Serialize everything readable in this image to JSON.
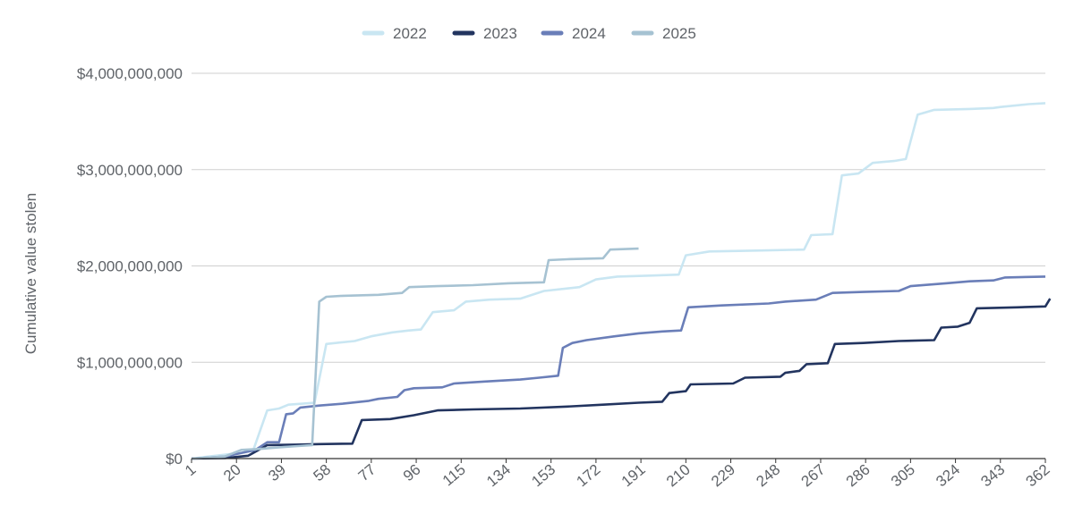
{
  "chart_data": {
    "type": "line",
    "title": "",
    "xlabel": "",
    "ylabel": "Cumulative value stolen",
    "x_ticks": [
      1,
      20,
      39,
      58,
      77,
      96,
      115,
      134,
      153,
      172,
      191,
      210,
      229,
      248,
      267,
      286,
      305,
      324,
      343,
      362
    ],
    "xlim": [
      1,
      362
    ],
    "ylim": [
      0,
      4000000000
    ],
    "y_ticks": [
      {
        "value": 0,
        "label": "$0"
      },
      {
        "value": 1000000000,
        "label": "$1,000,000,000"
      },
      {
        "value": 2000000000,
        "label": "$2,000,000,000"
      },
      {
        "value": 3000000000,
        "label": "$3,000,000,000"
      },
      {
        "value": 4000000000,
        "label": "$4,000,000,000"
      }
    ],
    "grid": true,
    "legend_position": "top",
    "series": [
      {
        "name": "2022",
        "color": "#c9e6f2",
        "points": [
          [
            1,
            0
          ],
          [
            8,
            20000000
          ],
          [
            15,
            40000000
          ],
          [
            22,
            60000000
          ],
          [
            27,
            80000000
          ],
          [
            33,
            500000000
          ],
          [
            38,
            520000000
          ],
          [
            42,
            560000000
          ],
          [
            48,
            570000000
          ],
          [
            53,
            580000000
          ],
          [
            58,
            1190000000
          ],
          [
            70,
            1220000000
          ],
          [
            77,
            1270000000
          ],
          [
            86,
            1310000000
          ],
          [
            93,
            1330000000
          ],
          [
            98,
            1340000000
          ],
          [
            103,
            1520000000
          ],
          [
            112,
            1540000000
          ],
          [
            117,
            1630000000
          ],
          [
            127,
            1650000000
          ],
          [
            140,
            1660000000
          ],
          [
            150,
            1740000000
          ],
          [
            165,
            1780000000
          ],
          [
            172,
            1860000000
          ],
          [
            181,
            1890000000
          ],
          [
            195,
            1900000000
          ],
          [
            207,
            1910000000
          ],
          [
            210,
            2110000000
          ],
          [
            220,
            2150000000
          ],
          [
            240,
            2160000000
          ],
          [
            260,
            2170000000
          ],
          [
            263,
            2320000000
          ],
          [
            272,
            2330000000
          ],
          [
            276,
            2940000000
          ],
          [
            283,
            2960000000
          ],
          [
            289,
            3070000000
          ],
          [
            298,
            3090000000
          ],
          [
            303,
            3110000000
          ],
          [
            308,
            3570000000
          ],
          [
            315,
            3620000000
          ],
          [
            330,
            3630000000
          ],
          [
            340,
            3640000000
          ],
          [
            343,
            3650000000
          ],
          [
            355,
            3680000000
          ],
          [
            362,
            3690000000
          ]
        ]
      },
      {
        "name": "2023",
        "color": "#22345f",
        "points": [
          [
            1,
            0
          ],
          [
            15,
            5000000
          ],
          [
            25,
            30000000
          ],
          [
            33,
            140000000
          ],
          [
            45,
            145000000
          ],
          [
            55,
            150000000
          ],
          [
            69,
            155000000
          ],
          [
            73,
            400000000
          ],
          [
            85,
            410000000
          ],
          [
            95,
            450000000
          ],
          [
            105,
            500000000
          ],
          [
            120,
            510000000
          ],
          [
            140,
            520000000
          ],
          [
            160,
            540000000
          ],
          [
            175,
            560000000
          ],
          [
            190,
            580000000
          ],
          [
            200,
            590000000
          ],
          [
            203,
            680000000
          ],
          [
            210,
            700000000
          ],
          [
            212,
            770000000
          ],
          [
            230,
            780000000
          ],
          [
            235,
            840000000
          ],
          [
            250,
            850000000
          ],
          [
            252,
            890000000
          ],
          [
            258,
            910000000
          ],
          [
            261,
            980000000
          ],
          [
            270,
            990000000
          ],
          [
            273,
            1190000000
          ],
          [
            285,
            1200000000
          ],
          [
            300,
            1220000000
          ],
          [
            315,
            1230000000
          ],
          [
            318,
            1360000000
          ],
          [
            325,
            1370000000
          ],
          [
            330,
            1410000000
          ],
          [
            333,
            1560000000
          ],
          [
            350,
            1570000000
          ],
          [
            362,
            1580000000
          ],
          [
            364,
            1660000000
          ]
        ]
      },
      {
        "name": "2024",
        "color": "#6a7eb8",
        "points": [
          [
            1,
            0
          ],
          [
            15,
            20000000
          ],
          [
            28,
            90000000
          ],
          [
            33,
            170000000
          ],
          [
            38,
            170000000
          ],
          [
            41,
            460000000
          ],
          [
            44,
            470000000
          ],
          [
            47,
            530000000
          ],
          [
            55,
            550000000
          ],
          [
            65,
            570000000
          ],
          [
            76,
            600000000
          ],
          [
            80,
            620000000
          ],
          [
            88,
            640000000
          ],
          [
            91,
            710000000
          ],
          [
            95,
            730000000
          ],
          [
            107,
            740000000
          ],
          [
            112,
            780000000
          ],
          [
            125,
            800000000
          ],
          [
            140,
            820000000
          ],
          [
            148,
            840000000
          ],
          [
            156,
            860000000
          ],
          [
            158,
            1150000000
          ],
          [
            162,
            1200000000
          ],
          [
            168,
            1230000000
          ],
          [
            180,
            1270000000
          ],
          [
            190,
            1300000000
          ],
          [
            200,
            1320000000
          ],
          [
            208,
            1330000000
          ],
          [
            211,
            1570000000
          ],
          [
            225,
            1590000000
          ],
          [
            245,
            1610000000
          ],
          [
            252,
            1630000000
          ],
          [
            265,
            1650000000
          ],
          [
            272,
            1720000000
          ],
          [
            285,
            1730000000
          ],
          [
            300,
            1740000000
          ],
          [
            305,
            1790000000
          ],
          [
            320,
            1820000000
          ],
          [
            330,
            1840000000
          ],
          [
            340,
            1850000000
          ],
          [
            345,
            1880000000
          ],
          [
            362,
            1890000000
          ]
        ]
      },
      {
        "name": "2025",
        "color": "#a6c2d2",
        "points": [
          [
            1,
            0
          ],
          [
            15,
            20000000
          ],
          [
            22,
            90000000
          ],
          [
            30,
            100000000
          ],
          [
            35,
            110000000
          ],
          [
            40,
            120000000
          ],
          [
            46,
            130000000
          ],
          [
            52,
            140000000
          ],
          [
            55,
            1630000000
          ],
          [
            58,
            1680000000
          ],
          [
            65,
            1690000000
          ],
          [
            80,
            1700000000
          ],
          [
            90,
            1720000000
          ],
          [
            93,
            1780000000
          ],
          [
            105,
            1790000000
          ],
          [
            120,
            1800000000
          ],
          [
            135,
            1820000000
          ],
          [
            150,
            1830000000
          ],
          [
            152,
            2060000000
          ],
          [
            160,
            2070000000
          ],
          [
            175,
            2080000000
          ],
          [
            178,
            2170000000
          ],
          [
            190,
            2180000000
          ]
        ]
      }
    ]
  }
}
